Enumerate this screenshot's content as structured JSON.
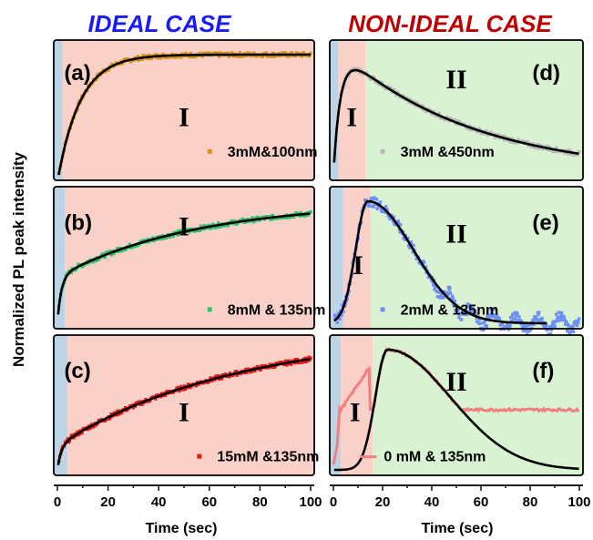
{
  "headers": {
    "left": "IDEAL CASE",
    "right": "NON-IDEAL CASE",
    "left_color": "#1a1aff",
    "right_color": "#c00000"
  },
  "ylabel": "Normalized PL peak intensity",
  "xlabel": "Time (sec)",
  "colors": {
    "blue_region": "#bdd3e6",
    "red_region": "#f9d1c8",
    "green_region": "#d8f2d2",
    "fit": "#000000"
  },
  "chart_data": [
    {
      "type": "scatter",
      "panel": "(a)",
      "legend": "3mM&100nm",
      "color": "#d9921b",
      "xlim": [
        0,
        100
      ],
      "regions": [
        {
          "from": 0,
          "to": 2,
          "region": "blue"
        },
        {
          "from": 2,
          "to": 100,
          "region": "red",
          "label": "I"
        }
      ],
      "fit": {
        "model": "rise",
        "tau": 9,
        "t0": 0.5,
        "A": 1.0
      },
      "series_points": [
        [
          1,
          0.08
        ],
        [
          3,
          0.25
        ],
        [
          6,
          0.48
        ],
        [
          10,
          0.66
        ],
        [
          15,
          0.81
        ],
        [
          20,
          0.89
        ],
        [
          30,
          0.96
        ],
        [
          40,
          0.985
        ],
        [
          60,
          0.995
        ],
        [
          80,
          1.0
        ],
        [
          100,
          1.0
        ]
      ]
    },
    {
      "type": "scatter",
      "panel": "(b)",
      "legend": "8mM & 135nm",
      "color": "#2ec26a",
      "xlim": [
        0,
        100
      ],
      "regions": [
        {
          "from": 0,
          "to": 3,
          "region": "blue"
        },
        {
          "from": 3,
          "to": 100,
          "region": "red",
          "label": "I"
        }
      ],
      "fit": {
        "model": "rise2",
        "a1": 0.38,
        "t1": 1.5,
        "a2": 0.62,
        "t2": 55
      },
      "series_points": [
        [
          1,
          0.08
        ],
        [
          3,
          0.3
        ],
        [
          10,
          0.47
        ],
        [
          20,
          0.57
        ],
        [
          40,
          0.72
        ],
        [
          60,
          0.82
        ],
        [
          80,
          0.9
        ],
        [
          100,
          0.96
        ]
      ]
    },
    {
      "type": "scatter",
      "panel": "(c)",
      "legend": "15mM &135nm",
      "color": "#e31a1a",
      "xlim": [
        0,
        100
      ],
      "regions": [
        {
          "from": 0,
          "to": 4,
          "region": "blue"
        },
        {
          "from": 4,
          "to": 100,
          "region": "red",
          "label": "I"
        }
      ],
      "fit": {
        "model": "rise2",
        "a1": 0.2,
        "t1": 1.5,
        "a2": 0.95,
        "t2": 70
      },
      "series_points": [
        [
          1,
          0.05
        ],
        [
          4,
          0.22
        ],
        [
          10,
          0.28
        ],
        [
          20,
          0.42
        ],
        [
          40,
          0.62
        ],
        [
          60,
          0.76
        ],
        [
          80,
          0.86
        ],
        [
          100,
          0.93
        ]
      ]
    },
    {
      "type": "scatter",
      "panel": "(d)",
      "legend": "3mM &450nm",
      "color": "#b8b8b8",
      "xlim": [
        0,
        100
      ],
      "regions": [
        {
          "from": 0,
          "to": 2,
          "region": "blue"
        },
        {
          "from": 2,
          "to": 13,
          "region": "red",
          "label": "I"
        },
        {
          "from": 13,
          "to": 100,
          "region": "green",
          "label": "II"
        }
      ],
      "fit": {
        "model": "risedecay",
        "tr": 3,
        "td": 55,
        "A": 1.08
      },
      "series_points": [
        [
          1,
          0.05
        ],
        [
          3,
          0.5
        ],
        [
          6,
          0.85
        ],
        [
          10,
          0.98
        ],
        [
          15,
          0.95
        ],
        [
          30,
          0.8
        ],
        [
          50,
          0.62
        ],
        [
          70,
          0.45
        ],
        [
          90,
          0.33
        ],
        [
          100,
          0.28
        ]
      ]
    },
    {
      "type": "scatter",
      "panel": "(e)",
      "legend": "2mM & 135nm",
      "color": "#6f8ff5",
      "xlim": [
        0,
        100
      ],
      "regions": [
        {
          "from": 0,
          "to": 4,
          "region": "blue"
        },
        {
          "from": 4,
          "to": 15,
          "region": "red",
          "label": "I"
        },
        {
          "from": 15,
          "to": 100,
          "region": "green",
          "label": "II"
        }
      ],
      "fit": {
        "model": "gauss",
        "tp": 14,
        "s1": 7,
        "s2": 26,
        "A": 1.0,
        "xmax": 87
      },
      "series_points": [
        [
          1,
          0.05
        ],
        [
          5,
          0.35
        ],
        [
          10,
          0.85
        ],
        [
          14,
          1.0
        ],
        [
          25,
          0.88
        ],
        [
          40,
          0.55
        ],
        [
          60,
          0.25
        ],
        [
          80,
          0.1
        ],
        [
          100,
          0.05
        ]
      ]
    },
    {
      "type": "line",
      "panel": "(f)",
      "legend": "0 mM & 135nm",
      "color": "#f28080",
      "xlim": [
        0,
        100
      ],
      "regions": [
        {
          "from": 0,
          "to": 3,
          "region": "blue"
        },
        {
          "from": 3,
          "to": 16,
          "region": "red",
          "label": "I"
        },
        {
          "from": 16,
          "to": 100,
          "region": "green",
          "label": "II"
        }
      ],
      "fit": {
        "model": "gauss",
        "tp": 22,
        "s1": 7,
        "s2": 36,
        "A": 1.0
      },
      "series_points": [
        [
          1,
          0.05
        ],
        [
          3,
          0.5
        ],
        [
          8,
          0.75
        ],
        [
          15,
          0.95
        ],
        [
          22,
          1.0
        ],
        [
          40,
          0.85
        ],
        [
          60,
          0.5
        ],
        [
          80,
          0.22
        ],
        [
          100,
          0.12
        ]
      ]
    }
  ],
  "x_ticks": [
    "0",
    "20",
    "40",
    "60",
    "80",
    "100"
  ]
}
